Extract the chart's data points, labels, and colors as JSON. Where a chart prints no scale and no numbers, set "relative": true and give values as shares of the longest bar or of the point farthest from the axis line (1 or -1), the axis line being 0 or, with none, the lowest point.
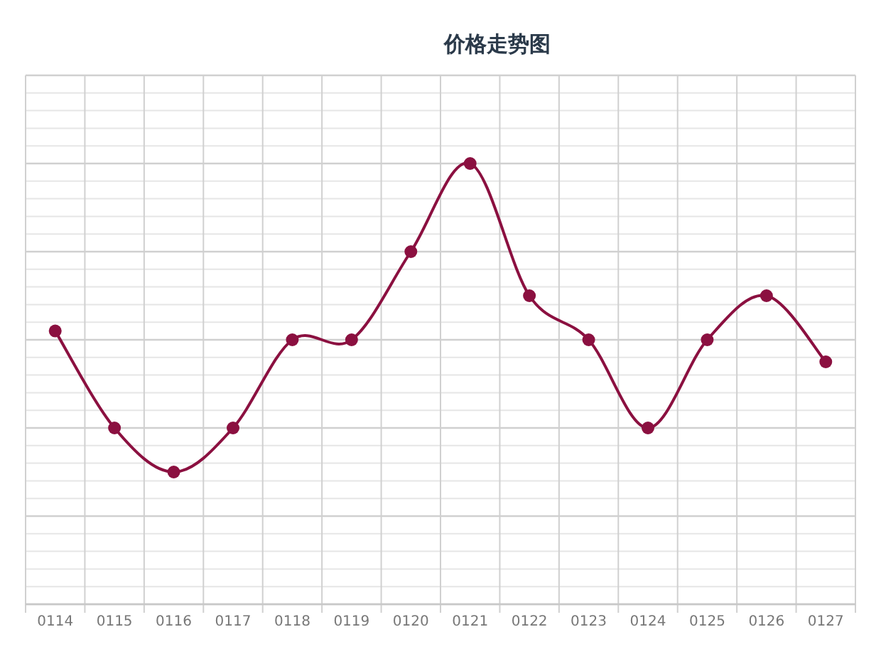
{
  "chart_data": {
    "type": "line",
    "title": "价格走势图",
    "categories": [
      "0114",
      "0115",
      "0116",
      "0117",
      "0118",
      "0119",
      "0120",
      "0121",
      "0122",
      "0123",
      "0124",
      "0125",
      "0126",
      "0127"
    ],
    "values": [
      0.62,
      0.4,
      0.3,
      0.4,
      0.6,
      0.6,
      0.8,
      1,
      0.7,
      0.6,
      0.4,
      0.6,
      0.7,
      0.55
    ],
    "color": "#8b1040",
    "relative": true,
    "grid": true,
    "marker": "circle",
    "line_style": "solid"
  }
}
